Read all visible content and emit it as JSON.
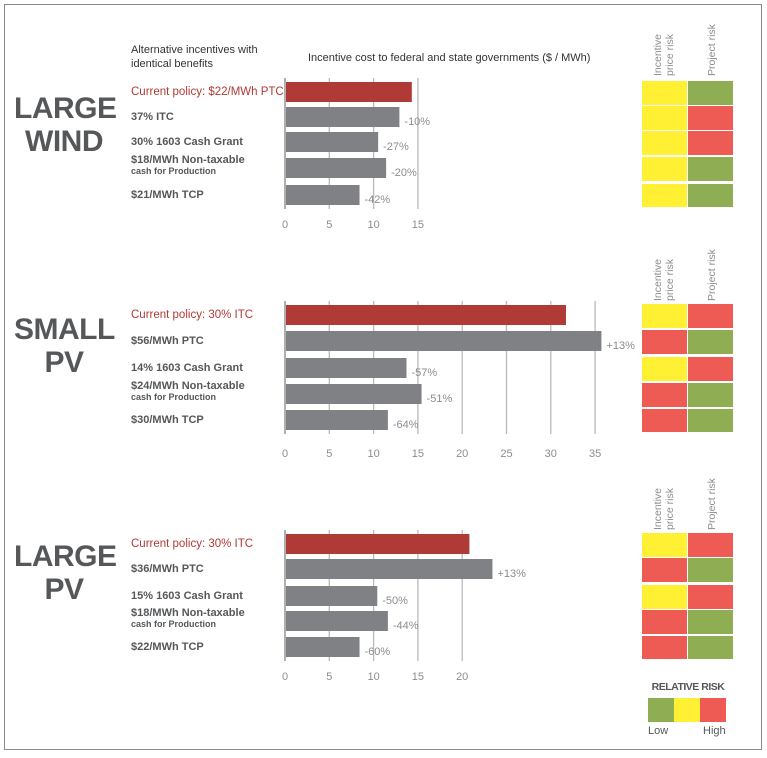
{
  "header": {
    "alternatives_label": "Alternative incentives with identical benefits",
    "axis_title": "Incentive cost to federal and state governments ($ / MWh)"
  },
  "risk_columns": [
    "Incentive price risk",
    "Project risk"
  ],
  "colors": {
    "current_policy": "#b03a35",
    "alternative": "#808184",
    "risk_low": "#8fad52",
    "risk_medium": "#fff033",
    "risk_high": "#ee5b55",
    "text_dark": "#555759",
    "text_gray": "#8a8c8e"
  },
  "legend": {
    "title": "RELATIVE RISK",
    "low": "Low",
    "high": "High",
    "levels": [
      "low",
      "medium",
      "high"
    ]
  },
  "chart_data": [
    {
      "type": "bar",
      "orientation": "horizontal",
      "title": "LARGE WIND",
      "title_lines": [
        "LARGE",
        "WIND"
      ],
      "xlabel": "Incentive cost to federal and state governments ($ / MWh)",
      "xlim": [
        0,
        15
      ],
      "xticks": [
        0,
        5,
        10,
        15
      ],
      "grid": true,
      "categories": [
        "Current policy: $22/MWh PTC",
        "37% ITC",
        "30% 1603 Cash Grant",
        "$18/MWh Non-taxable cash for Production",
        "$21/MWh TCP"
      ],
      "category_lines": [
        [
          "Current policy: $22/MWh PTC"
        ],
        [
          "37% ITC"
        ],
        [
          "30% 1603 Cash Grant"
        ],
        [
          "$18/MWh Non-taxable",
          "cash for Production"
        ],
        [
          "$21/MWh TCP"
        ]
      ],
      "values": [
        14.2,
        12.8,
        10.4,
        11.3,
        8.3
      ],
      "change_labels": [
        "",
        "-10%",
        "-27%",
        "-20%",
        "-42%"
      ],
      "risk": {
        "incentive_price_risk": [
          "medium",
          "medium",
          "medium",
          "medium",
          "medium"
        ],
        "project_risk": [
          "low",
          "high",
          "high",
          "low",
          "low"
        ]
      }
    },
    {
      "type": "bar",
      "orientation": "horizontal",
      "title": "SMALL PV",
      "title_lines": [
        "SMALL",
        "PV"
      ],
      "xlabel": "Incentive cost to federal and state governments ($ / MWh)",
      "xlim": [
        0,
        35
      ],
      "xticks": [
        0,
        5,
        10,
        15,
        20,
        25,
        30,
        35
      ],
      "grid": true,
      "categories": [
        "Current policy: 30% ITC",
        "$56/MWh PTC",
        "14% 1603 Cash Grant",
        "$24/MWh Non-taxable cash for Production",
        "$30/MWh TCP"
      ],
      "category_lines": [
        [
          "Current policy: 30% ITC"
        ],
        [
          "$56/MWh PTC"
        ],
        [
          "14% 1603 Cash Grant"
        ],
        [
          "$24/MWh Non-taxable",
          "cash for Production"
        ],
        [
          "$30/MWh TCP"
        ]
      ],
      "values": [
        31.6,
        35.6,
        13.6,
        15.3,
        11.5
      ],
      "change_labels": [
        "",
        "+13%",
        "-57%",
        "-51%",
        "-64%"
      ],
      "risk": {
        "incentive_price_risk": [
          "medium",
          "high",
          "medium",
          "high",
          "high"
        ],
        "project_risk": [
          "high",
          "low",
          "high",
          "low",
          "low"
        ]
      }
    },
    {
      "type": "bar",
      "orientation": "horizontal",
      "title": "LARGE PV",
      "title_lines": [
        "LARGE",
        "PV"
      ],
      "xlabel": "Incentive cost to federal and state governments ($ / MWh)",
      "xlim": [
        0,
        20
      ],
      "xticks": [
        0,
        5,
        10,
        15,
        20
      ],
      "grid": true,
      "categories": [
        "Current policy: 30% ITC",
        "$36/MWh PTC",
        "15% 1603 Cash Grant",
        "$18/MWh Non-taxable cash for Production",
        "$22/MWh TCP"
      ],
      "category_lines": [
        [
          "Current policy: 30% ITC"
        ],
        [
          "$36/MWh PTC"
        ],
        [
          "15% 1603 Cash Grant"
        ],
        [
          "$18/MWh Non-taxable",
          "cash for Production"
        ],
        [
          "$22/MWh TCP"
        ]
      ],
      "values": [
        20.7,
        23.3,
        10.3,
        11.5,
        8.3
      ],
      "change_labels": [
        "",
        "+13%",
        "-50%",
        "-44%",
        "-60%"
      ],
      "risk": {
        "incentive_price_risk": [
          "medium",
          "high",
          "medium",
          "high",
          "high"
        ],
        "project_risk": [
          "high",
          "low",
          "high",
          "low",
          "low"
        ]
      }
    }
  ]
}
